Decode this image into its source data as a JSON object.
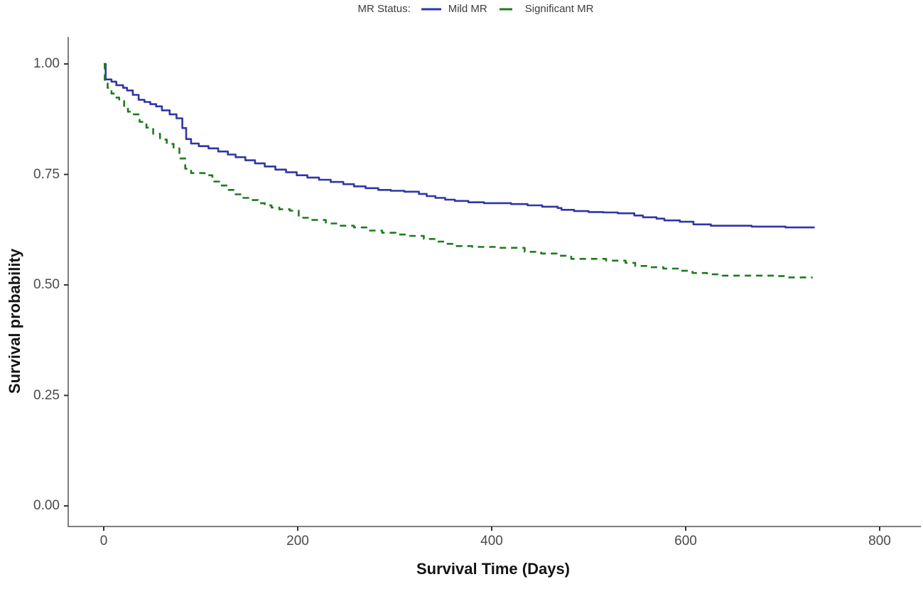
{
  "chart_data": {
    "type": "line",
    "subtype": "kaplan-meier-step",
    "legend_title": "MR Status:",
    "legend_position": "top-center",
    "xlabel": "Survival Time (Days)",
    "ylabel": "Survival probability",
    "xlim": [
      0,
      800
    ],
    "ylim": [
      0.0,
      1.0
    ],
    "grid": false,
    "x_ticks": [
      {
        "value": 0,
        "label": "0"
      },
      {
        "value": 200,
        "label": "200"
      },
      {
        "value": 400,
        "label": "400"
      },
      {
        "value": 600,
        "label": "600"
      },
      {
        "value": 800,
        "label": "800"
      }
    ],
    "y_ticks": [
      {
        "value": 1.0,
        "label": "1.00"
      },
      {
        "value": 0.75,
        "label": "0.75"
      },
      {
        "value": 0.5,
        "label": "0.50"
      },
      {
        "value": 0.25,
        "label": "0.25"
      },
      {
        "value": 0.0,
        "label": "0.00"
      }
    ],
    "series": [
      {
        "name": "Mild MR",
        "color": "#2f36a5",
        "style": "solid",
        "points": [
          [
            0,
            1.0
          ],
          [
            2,
            0.965
          ],
          [
            8,
            0.96
          ],
          [
            13,
            0.952
          ],
          [
            20,
            0.946
          ],
          [
            24,
            0.94
          ],
          [
            30,
            0.93
          ],
          [
            36,
            0.919
          ],
          [
            42,
            0.914
          ],
          [
            48,
            0.909
          ],
          [
            54,
            0.904
          ],
          [
            60,
            0.895
          ],
          [
            68,
            0.886
          ],
          [
            75,
            0.877
          ],
          [
            81,
            0.855
          ],
          [
            85,
            0.83
          ],
          [
            90,
            0.82
          ],
          [
            98,
            0.814
          ],
          [
            108,
            0.809
          ],
          [
            118,
            0.802
          ],
          [
            128,
            0.795
          ],
          [
            136,
            0.789
          ],
          [
            146,
            0.782
          ],
          [
            156,
            0.775
          ],
          [
            166,
            0.768
          ],
          [
            177,
            0.761
          ],
          [
            188,
            0.755
          ],
          [
            199,
            0.748
          ],
          [
            210,
            0.743
          ],
          [
            222,
            0.738
          ],
          [
            234,
            0.733
          ],
          [
            247,
            0.728
          ],
          [
            258,
            0.723
          ],
          [
            270,
            0.719
          ],
          [
            283,
            0.715
          ],
          [
            296,
            0.713
          ],
          [
            310,
            0.711
          ],
          [
            325,
            0.706
          ],
          [
            333,
            0.701
          ],
          [
            342,
            0.697
          ],
          [
            352,
            0.693
          ],
          [
            362,
            0.69
          ],
          [
            376,
            0.687
          ],
          [
            392,
            0.685
          ],
          [
            420,
            0.683
          ],
          [
            437,
            0.68
          ],
          [
            452,
            0.677
          ],
          [
            468,
            0.674
          ],
          [
            472,
            0.67
          ],
          [
            485,
            0.667
          ],
          [
            500,
            0.665
          ],
          [
            515,
            0.664
          ],
          [
            530,
            0.662
          ],
          [
            547,
            0.657
          ],
          [
            556,
            0.653
          ],
          [
            570,
            0.65
          ],
          [
            578,
            0.646
          ],
          [
            594,
            0.643
          ],
          [
            608,
            0.637
          ],
          [
            626,
            0.634
          ],
          [
            668,
            0.632
          ],
          [
            703,
            0.63
          ],
          [
            733,
            0.63
          ]
        ]
      },
      {
        "name": "Significant MR",
        "color": "#1e7b1e",
        "style": "dashed",
        "points": [
          [
            0,
            1.0
          ],
          [
            1,
            0.956
          ],
          [
            4,
            0.946
          ],
          [
            8,
            0.933
          ],
          [
            12,
            0.924
          ],
          [
            16,
            0.916
          ],
          [
            21,
            0.905
          ],
          [
            25,
            0.892
          ],
          [
            31,
            0.886
          ],
          [
            37,
            0.869
          ],
          [
            44,
            0.856
          ],
          [
            51,
            0.842
          ],
          [
            58,
            0.829
          ],
          [
            65,
            0.819
          ],
          [
            72,
            0.809
          ],
          [
            78,
            0.786
          ],
          [
            84,
            0.763
          ],
          [
            90,
            0.753
          ],
          [
            104,
            0.748
          ],
          [
            112,
            0.734
          ],
          [
            120,
            0.725
          ],
          [
            128,
            0.715
          ],
          [
            136,
            0.705
          ],
          [
            144,
            0.697
          ],
          [
            152,
            0.692
          ],
          [
            159,
            0.685
          ],
          [
            166,
            0.68
          ],
          [
            173,
            0.675
          ],
          [
            181,
            0.671
          ],
          [
            192,
            0.668
          ],
          [
            201,
            0.652
          ],
          [
            215,
            0.647
          ],
          [
            229,
            0.639
          ],
          [
            243,
            0.634
          ],
          [
            258,
            0.63
          ],
          [
            272,
            0.623
          ],
          [
            287,
            0.618
          ],
          [
            301,
            0.614
          ],
          [
            316,
            0.611
          ],
          [
            330,
            0.604
          ],
          [
            341,
            0.598
          ],
          [
            351,
            0.593
          ],
          [
            361,
            0.588
          ],
          [
            380,
            0.586
          ],
          [
            404,
            0.584
          ],
          [
            434,
            0.575
          ],
          [
            451,
            0.571
          ],
          [
            467,
            0.566
          ],
          [
            482,
            0.559
          ],
          [
            518,
            0.555
          ],
          [
            538,
            0.55
          ],
          [
            548,
            0.543
          ],
          [
            562,
            0.54
          ],
          [
            577,
            0.537
          ],
          [
            592,
            0.532
          ],
          [
            607,
            0.527
          ],
          [
            622,
            0.524
          ],
          [
            638,
            0.521
          ],
          [
            694,
            0.52
          ],
          [
            703,
            0.517
          ],
          [
            730,
            0.515
          ]
        ]
      }
    ]
  },
  "colors": {
    "axis_line": "#7f7f7f",
    "tick_mark": "#333333",
    "tick_label": "#4a4a4a",
    "axis_title": "#141414",
    "background": "#ffffff"
  }
}
